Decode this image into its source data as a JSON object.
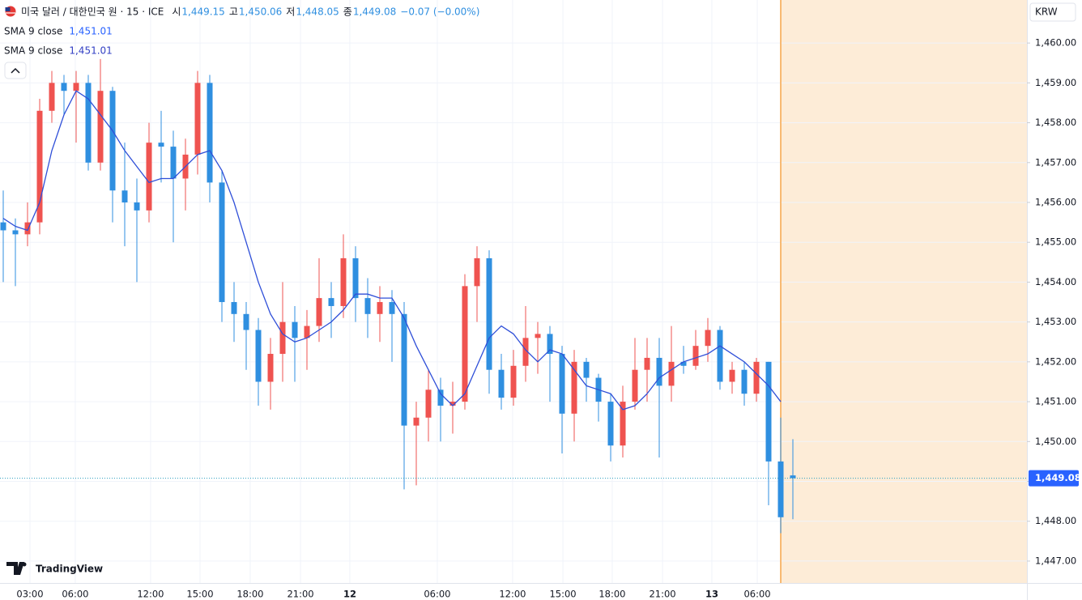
{
  "chart_data": {
    "type": "candlestick",
    "symbol": "미국 달러 / 대한민국 원 · 15 · ICE",
    "ohlc_legend": [
      {
        "label": "시",
        "value": "1,449.15"
      },
      {
        "label": "고",
        "value": "1,450.06"
      },
      {
        "label": "저",
        "value": "1,448.05"
      },
      {
        "label": "종",
        "value": "1,449.08"
      }
    ],
    "change": "−0.07 (−0.00%)",
    "indicators": [
      {
        "name": "SMA 9 close",
        "value_label": "1,451.01",
        "color": "#2962ff"
      },
      {
        "name": "SMA 9 close",
        "value_label": "1,451.01",
        "color": "#3340c4"
      }
    ],
    "currency": "KRW",
    "brand": "TradingView",
    "up_color": "#ef5350",
    "down_color": "#2f8fe0",
    "open": [
      1455.5,
      1455.3,
      1455.2,
      1455.5,
      1458.3,
      1459.0,
      1458.8,
      1459.0,
      1457.0,
      1458.8,
      1456.3,
      1456.0,
      1455.8,
      1457.5,
      1457.4,
      1456.6,
      1457.2,
      1459.0,
      1456.5,
      1453.5,
      1453.2,
      1452.8,
      1451.5,
      1452.2,
      1453.0,
      1452.6,
      1452.9,
      1453.6,
      1453.4,
      1454.6,
      1453.6,
      1453.2,
      1453.5,
      1453.2,
      1450.4,
      1450.6,
      1451.3,
      1450.9,
      1451.0,
      1453.9,
      1454.6,
      1451.8,
      1451.1,
      1451.9,
      1452.6,
      1452.7,
      1452.2,
      1450.7,
      1452.0,
      1451.6,
      1451.0,
      1449.9,
      1451.0,
      1451.8,
      1452.1,
      1451.4,
      1452.0,
      1451.9,
      1452.4,
      1452.8,
      1451.5,
      1451.8,
      1451.2,
      1452.0,
      1449.5,
      1449.15
    ],
    "high": [
      1456.3,
      1455.6,
      1456.0,
      1458.6,
      1459.3,
      1459.2,
      1459.3,
      1459.2,
      1459.6,
      1458.9,
      1457.5,
      1456.6,
      1458.0,
      1458.3,
      1457.8,
      1457.6,
      1459.3,
      1459.2,
      1456.8,
      1454.0,
      1453.5,
      1453.1,
      1452.6,
      1454.0,
      1453.4,
      1453.3,
      1454.6,
      1454.0,
      1455.2,
      1454.9,
      1454.1,
      1453.9,
      1453.8,
      1453.5,
      1451.0,
      1451.8,
      1451.6,
      1451.5,
      1454.2,
      1454.9,
      1454.8,
      1452.2,
      1452.3,
      1453.4,
      1453.0,
      1452.9,
      1452.4,
      1452.3,
      1452.1,
      1451.7,
      1451.2,
      1451.4,
      1452.6,
      1452.6,
      1452.6,
      1452.9,
      1452.4,
      1452.8,
      1453.1,
      1452.9,
      1452.0,
      1452.0,
      1452.1,
      1452.0,
      1450.6,
      1450.06
    ],
    "low": [
      1454.0,
      1453.9,
      1454.9,
      1455.2,
      1458.0,
      1458.2,
      1457.5,
      1456.8,
      1456.8,
      1455.5,
      1454.9,
      1454.0,
      1455.5,
      1456.5,
      1455.0,
      1455.8,
      1456.7,
      1456.0,
      1453.0,
      1452.5,
      1451.8,
      1450.9,
      1450.8,
      1451.5,
      1451.5,
      1451.8,
      1452.5,
      1452.6,
      1453.1,
      1453.0,
      1452.6,
      1452.5,
      1452.0,
      1448.8,
      1448.9,
      1450.0,
      1450.0,
      1450.2,
      1450.8,
      1453.0,
      1451.2,
      1450.8,
      1450.9,
      1451.5,
      1451.7,
      1451.0,
      1449.7,
      1450.0,
      1451.0,
      1450.5,
      1449.5,
      1449.6,
      1450.8,
      1451.0,
      1449.6,
      1451.0,
      1451.7,
      1451.8,
      1452.0,
      1451.3,
      1451.2,
      1450.9,
      1451.0,
      1448.4,
      1447.7,
      1448.05
    ],
    "close": [
      1455.3,
      1455.2,
      1455.5,
      1458.3,
      1459.0,
      1458.8,
      1459.0,
      1457.0,
      1458.8,
      1456.3,
      1456.0,
      1455.8,
      1457.5,
      1457.4,
      1456.6,
      1457.2,
      1459.0,
      1456.5,
      1453.5,
      1453.2,
      1452.8,
      1451.5,
      1452.2,
      1453.0,
      1452.6,
      1452.9,
      1453.6,
      1453.4,
      1454.6,
      1453.6,
      1453.2,
      1453.5,
      1453.2,
      1450.4,
      1450.6,
      1451.3,
      1450.9,
      1451.0,
      1453.9,
      1454.6,
      1451.8,
      1451.1,
      1451.9,
      1452.6,
      1452.7,
      1452.2,
      1450.7,
      1452.0,
      1451.6,
      1451.0,
      1449.9,
      1451.0,
      1451.8,
      1452.1,
      1451.4,
      1452.0,
      1451.9,
      1452.4,
      1452.8,
      1451.5,
      1451.8,
      1451.2,
      1452.0,
      1449.5,
      1448.1,
      1449.08
    ],
    "sma": [
      1455.6,
      1455.4,
      1455.3,
      1456.0,
      1457.3,
      1458.2,
      1458.8,
      1458.6,
      1458.2,
      1457.8,
      1457.3,
      1456.9,
      1456.5,
      1456.6,
      1456.6,
      1456.9,
      1457.2,
      1457.3,
      1456.8,
      1456.0,
      1455.0,
      1454.0,
      1453.2,
      1452.7,
      1452.5,
      1452.6,
      1452.8,
      1453.0,
      1453.3,
      1453.7,
      1453.7,
      1453.6,
      1453.6,
      1453.1,
      1452.4,
      1451.8,
      1451.2,
      1450.9,
      1451.2,
      1451.9,
      1452.6,
      1452.9,
      1452.7,
      1452.3,
      1452.0,
      1452.3,
      1452.2,
      1451.8,
      1451.4,
      1451.3,
      1451.2,
      1450.8,
      1450.9,
      1451.2,
      1451.6,
      1451.8,
      1452.0,
      1452.1,
      1452.2,
      1452.4,
      1452.2,
      1452.0,
      1451.7,
      1451.4,
      1451.0,
      null
    ],
    "sma_color": "#2f4fd8",
    "last_price": {
      "value": 1449.08,
      "label": "1,449.08"
    },
    "ylim": [
      1446.45,
      1461.08
    ],
    "yticks": [
      {
        "value": 1460,
        "label": "1,460.00"
      },
      {
        "value": 1459,
        "label": "1,459.00"
      },
      {
        "value": 1458,
        "label": "1,458.00"
      },
      {
        "value": 1457,
        "label": "1,457.00"
      },
      {
        "value": 1456,
        "label": "1,456.00"
      },
      {
        "value": 1455,
        "label": "1,455.00"
      },
      {
        "value": 1454,
        "label": "1,454.00"
      },
      {
        "value": 1453,
        "label": "1,453.00"
      },
      {
        "value": 1452,
        "label": "1,452.00"
      },
      {
        "value": 1451,
        "label": "1,451.00"
      },
      {
        "value": 1450,
        "label": "1,450.00"
      },
      {
        "value": 1449,
        "label": "1,449.00"
      },
      {
        "value": 1448,
        "label": "1,448.00"
      },
      {
        "value": 1447,
        "label": "1,447.00"
      }
    ],
    "xticks": [
      {
        "value": 2.2,
        "label": "03:00"
      },
      {
        "value": 5.93,
        "label": "06:00"
      },
      {
        "value": 12.13,
        "label": "12:00"
      },
      {
        "value": 16.2,
        "label": "15:00"
      },
      {
        "value": 20.33,
        "label": "18:00"
      },
      {
        "value": 24.47,
        "label": "21:00"
      },
      {
        "value": 28.53,
        "label": "12"
      },
      {
        "value": 35.73,
        "label": "06:00"
      },
      {
        "value": 41.93,
        "label": "12:00"
      },
      {
        "value": 46.07,
        "label": "15:00"
      },
      {
        "value": 50.13,
        "label": "18:00"
      },
      {
        "value": 54.27,
        "label": "21:00"
      },
      {
        "value": 58.33,
        "label": "13"
      },
      {
        "value": 62.07,
        "label": "06:00"
      }
    ],
    "grid": true
  }
}
